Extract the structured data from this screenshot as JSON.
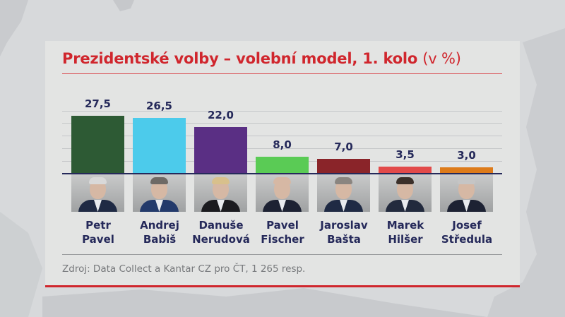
{
  "title": {
    "main": "Prezidentské volby – volební model, 1. kolo",
    "unit": "(v %)"
  },
  "source": "Zdroj: Data Collect a Kantar CZ pro ČT, 1 265 resp.",
  "colors": {
    "title": "#d0262d",
    "text_dark": "#25295a",
    "source_text": "#76787b",
    "accent_rule": "#d0262d"
  },
  "candidates": [
    {
      "first": "Petr",
      "last": "Pavel",
      "value": 27.5,
      "label": "27,5",
      "color": "#2d5a34",
      "hair": "#d9d9d9",
      "suit": "#1f2a44"
    },
    {
      "first": "Andrej",
      "last": "Babiš",
      "value": 26.5,
      "label": "26,5",
      "color": "#4ccbeb",
      "hair": "#6e6a66",
      "suit": "#233a6b"
    },
    {
      "first": "Danuše",
      "last": "Nerudová",
      "value": 22.0,
      "label": "22,0",
      "color": "#5a2f84",
      "hair": "#d8c08c",
      "suit": "#1b1b1f"
    },
    {
      "first": "Pavel",
      "last": "Fischer",
      "value": 8.0,
      "label": "8,0",
      "color": "#5acb55",
      "hair": "#d6b8a4",
      "suit": "#1d2233"
    },
    {
      "first": "Jaroslav",
      "last": "Bašta",
      "value": 7.0,
      "label": "7,0",
      "color": "#8a2429",
      "hair": "#8a8580",
      "suit": "#1f2a44"
    },
    {
      "first": "Marek",
      "last": "Hilšer",
      "value": 3.5,
      "label": "3,5",
      "color": "#e24a4a",
      "hair": "#3b302a",
      "suit": "#222a3d"
    },
    {
      "first": "Josef",
      "last": "Středula",
      "value": 3.0,
      "label": "3,0",
      "color": "#dd7b1a",
      "hair": "#c5c5c5",
      "suit": "#1d2233"
    }
  ],
  "chart_data": {
    "type": "bar",
    "title": "Prezidentské volby – volební model, 1. kolo (v %)",
    "categories": [
      "Petr Pavel",
      "Andrej Babiš",
      "Danuše Nerudová",
      "Pavel Fischer",
      "Jaroslav Bašta",
      "Marek Hilšer",
      "Josef Středula"
    ],
    "values": [
      27.5,
      26.5,
      22.0,
      8.0,
      7.0,
      3.5,
      3.0
    ],
    "data_labels": [
      "27,5",
      "26,5",
      "22,0",
      "8,0",
      "7,0",
      "3,5",
      "3,0"
    ],
    "colors": [
      "#2d5a34",
      "#4ccbeb",
      "#5a2f84",
      "#5acb55",
      "#8a2429",
      "#e24a4a",
      "#dd7b1a"
    ],
    "xlabel": "",
    "ylabel": "%",
    "ylim": [
      0,
      30
    ],
    "grid": true,
    "legend": "none",
    "annotation": "Zdroj: Data Collect a Kantar CZ pro ČT, 1 265 resp."
  }
}
